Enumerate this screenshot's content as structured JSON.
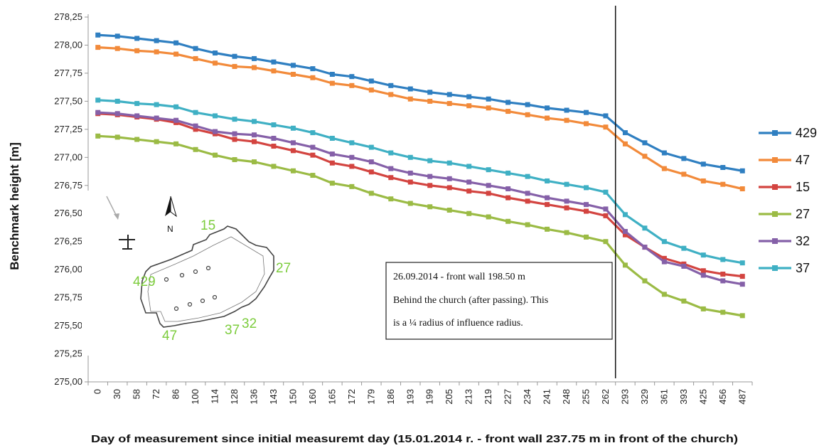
{
  "chart_data": {
    "type": "line",
    "xlabel": "Day of measurement since initial measuremt day (15.01.2014 r.  - front wall 237.75 m in front of the church)",
    "ylabel": "Benchmark height [m]",
    "categories": [
      "0",
      "30",
      "58",
      "72",
      "86",
      "100",
      "114",
      "128",
      "136",
      "143",
      "150",
      "160",
      "165",
      "172",
      "179",
      "186",
      "193",
      "199",
      "205",
      "213",
      "219",
      "227",
      "234",
      "241",
      "248",
      "255",
      "262",
      "293",
      "329",
      "361",
      "393",
      "425",
      "456",
      "487"
    ],
    "y_ticks": [
      "275,00",
      "275,25",
      "275,50",
      "275,75",
      "276,00",
      "276,25",
      "276,50",
      "276,75",
      "277,00",
      "277,25",
      "277,50",
      "277,75",
      "278,00",
      "278,25"
    ],
    "ylim": [
      275.0,
      278.25
    ],
    "grid": false,
    "legend_position": "right",
    "series": [
      {
        "name": "429",
        "color": "#2f7fc1",
        "values": [
          278.09,
          278.08,
          278.06,
          278.04,
          278.02,
          277.97,
          277.93,
          277.9,
          277.88,
          277.85,
          277.82,
          277.79,
          277.74,
          277.72,
          277.68,
          277.64,
          277.61,
          277.58,
          277.56,
          277.54,
          277.52,
          277.49,
          277.47,
          277.44,
          277.42,
          277.4,
          277.37,
          277.22,
          277.13,
          277.04,
          276.99,
          276.94,
          276.91,
          276.88
        ]
      },
      {
        "name": "47",
        "color": "#f28a3a",
        "values": [
          277.98,
          277.97,
          277.95,
          277.94,
          277.92,
          277.88,
          277.84,
          277.81,
          277.8,
          277.77,
          277.74,
          277.71,
          277.66,
          277.64,
          277.6,
          277.56,
          277.52,
          277.5,
          277.48,
          277.46,
          277.44,
          277.41,
          277.38,
          277.35,
          277.33,
          277.3,
          277.27,
          277.12,
          277.01,
          276.9,
          276.85,
          276.79,
          276.76,
          276.72
        ]
      },
      {
        "name": "15",
        "color": "#d34440",
        "values": [
          277.39,
          277.38,
          277.36,
          277.34,
          277.31,
          277.25,
          277.21,
          277.16,
          277.14,
          277.1,
          277.06,
          277.02,
          276.95,
          276.92,
          276.87,
          276.82,
          276.78,
          276.75,
          276.73,
          276.7,
          276.68,
          276.64,
          276.61,
          276.58,
          276.55,
          276.52,
          276.48,
          276.31,
          276.2,
          276.1,
          276.05,
          275.99,
          275.96,
          275.94
        ]
      },
      {
        "name": "27",
        "color": "#9bbb45",
        "values": [
          277.19,
          277.18,
          277.16,
          277.14,
          277.12,
          277.07,
          277.02,
          276.98,
          276.96,
          276.92,
          276.88,
          276.84,
          276.77,
          276.74,
          276.68,
          276.63,
          276.59,
          276.56,
          276.53,
          276.5,
          276.47,
          276.43,
          276.4,
          276.36,
          276.33,
          276.29,
          276.25,
          276.04,
          275.9,
          275.78,
          275.72,
          275.65,
          275.62,
          275.59
        ]
      },
      {
        "name": "32",
        "color": "#8560a8",
        "values": [
          277.4,
          277.39,
          277.37,
          277.35,
          277.33,
          277.28,
          277.23,
          277.21,
          277.2,
          277.17,
          277.13,
          277.09,
          277.03,
          277.0,
          276.96,
          276.9,
          276.86,
          276.83,
          276.81,
          276.78,
          276.75,
          276.72,
          276.68,
          276.64,
          276.61,
          276.58,
          276.54,
          276.34,
          276.2,
          276.07,
          276.03,
          275.95,
          275.9,
          275.87
        ]
      },
      {
        "name": "37",
        "color": "#3fb0c4",
        "values": [
          277.51,
          277.5,
          277.48,
          277.47,
          277.45,
          277.4,
          277.37,
          277.34,
          277.32,
          277.29,
          277.26,
          277.22,
          277.17,
          277.13,
          277.09,
          277.04,
          277.0,
          276.97,
          276.95,
          276.92,
          276.89,
          276.86,
          276.83,
          276.79,
          276.76,
          276.73,
          276.69,
          276.49,
          276.37,
          276.25,
          276.19,
          276.13,
          276.09,
          276.06
        ]
      }
    ],
    "vertical_marker_after_category": "262",
    "annotation": {
      "line1": "26.09.2014 - front wall 198.50 m",
      "line2": "Behind the church (after passing). This",
      "line3": "is a ¼ radius of influence radius."
    },
    "inset_plan": {
      "labels": [
        "15",
        "27",
        "429",
        "47",
        "37",
        "32"
      ],
      "north_label": "N",
      "label_color": "#7ccc3c"
    }
  }
}
